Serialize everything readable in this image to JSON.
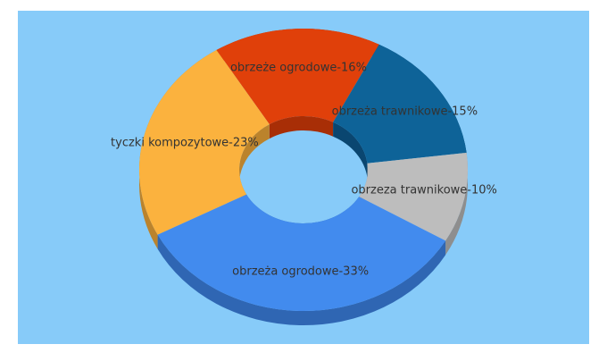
{
  "chart_data": {
    "type": "donut",
    "values": [
      16,
      15,
      10,
      33,
      23
    ],
    "value_labels": [
      "obrzeże ogrodowe-16%",
      "obrzeża trawnikowe-15%",
      "obrzeza trawnikowe-10%",
      "obrzeża ogrodowe-33%",
      "tyczki kompozytowe-23%"
    ],
    "colors": [
      "#e0400a",
      "#0e6398",
      "#bdbdbd",
      "#428bee",
      "#fbb23e"
    ],
    "side_colors": [
      "#a82e06",
      "#0a4670",
      "#8e8e8e",
      "#2f66b3",
      "#bb832c"
    ]
  }
}
